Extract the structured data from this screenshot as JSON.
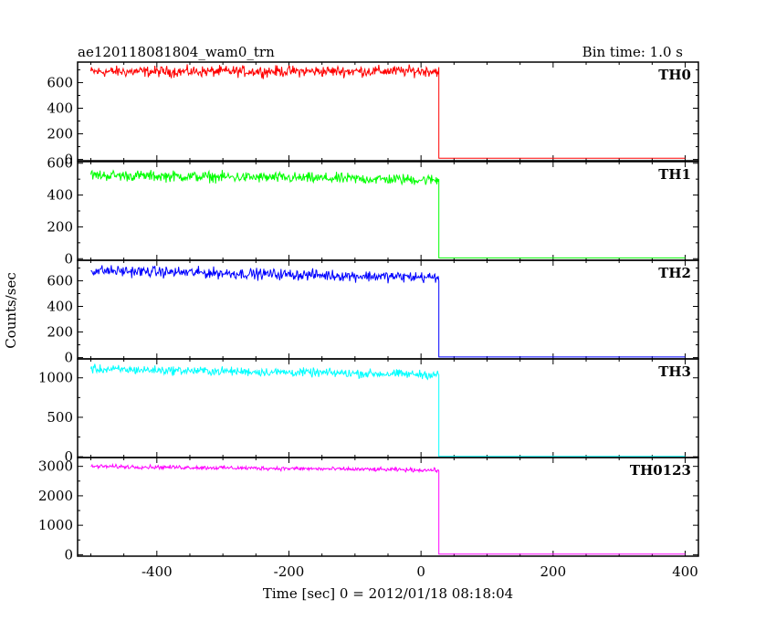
{
  "header": {
    "title": "ae120118081804_wam0_trn",
    "bin_time": "Bin time: 1.0 s"
  },
  "chart_data": {
    "type": "line",
    "title": "ae120118081804_wam0_trn",
    "xlabel": "Time [sec] 0 = 2012/01/18 08:18:04",
    "ylabel": "Counts/sec",
    "xlim": [
      -520,
      420
    ],
    "x_ticks": [
      -400,
      -200,
      0,
      200,
      400
    ],
    "x_tick_labels": [
      "-400",
      "-200",
      "0",
      "200",
      "400"
    ],
    "step_time": 27,
    "x_start": -500,
    "x_end": 400,
    "grid": false,
    "panels": [
      {
        "name": "TH0",
        "color": "#ff0000",
        "ylim": [
          -10,
          760
        ],
        "y_ticks": [
          0,
          200,
          400,
          600
        ],
        "y_tick_labels": [
          "0",
          "200",
          "400",
          "600"
        ],
        "level_start": 685,
        "level_end": 690,
        "noise": 35,
        "after_value": 10
      },
      {
        "name": "TH1",
        "color": "#00ff00",
        "ylim": [
          -10,
          610
        ],
        "y_ticks": [
          0,
          200,
          400,
          600
        ],
        "y_tick_labels": [
          "0",
          "200",
          "400",
          "600"
        ],
        "level_start": 525,
        "level_end": 495,
        "noise": 28,
        "after_value": 5
      },
      {
        "name": "TH2",
        "color": "#0000ff",
        "ylim": [
          -10,
          760
        ],
        "y_ticks": [
          0,
          200,
          400,
          600
        ],
        "y_tick_labels": [
          "0",
          "200",
          "400",
          "600"
        ],
        "level_start": 680,
        "level_end": 625,
        "noise": 35,
        "after_value": 5
      },
      {
        "name": "TH3",
        "color": "#00ffff",
        "ylim": [
          -10,
          1240
        ],
        "y_ticks": [
          0,
          500,
          1000
        ],
        "y_tick_labels": [
          "0",
          "500",
          "1000"
        ],
        "level_start": 1110,
        "level_end": 1040,
        "noise": 45,
        "after_value": 5
      },
      {
        "name": "TH0123",
        "color": "#ff00ff",
        "ylim": [
          -50,
          3300
        ],
        "y_ticks": [
          0,
          1000,
          2000,
          3000
        ],
        "y_tick_labels": [
          "0",
          "1000",
          "2000",
          "3000"
        ],
        "level_start": 3000,
        "level_end": 2870,
        "noise": 55,
        "after_value": 20
      }
    ]
  }
}
